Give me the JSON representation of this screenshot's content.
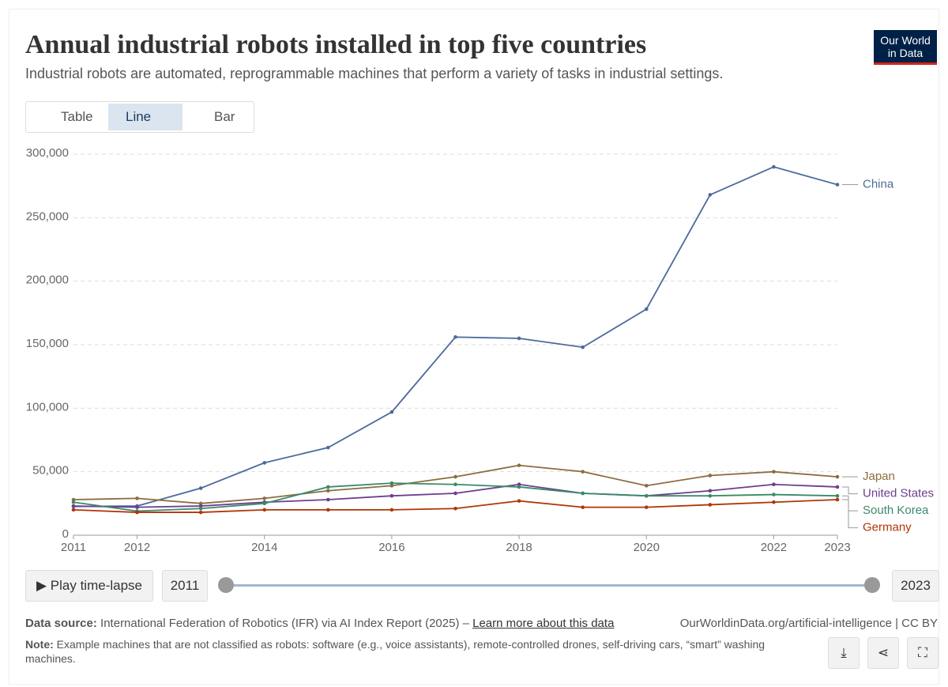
{
  "chart_data": {
    "type": "line",
    "title": "Annual industrial robots installed in top five countries",
    "subtitle": "Industrial robots are automated, reprogrammable machines that perform a variety of tasks in industrial settings.",
    "x": [
      2011,
      2012,
      2013,
      2014,
      2015,
      2016,
      2017,
      2018,
      2019,
      2020,
      2021,
      2022,
      2023
    ],
    "xlim": [
      2011,
      2023
    ],
    "xticks": [
      2011,
      2012,
      2014,
      2016,
      2018,
      2020,
      2022,
      2023
    ],
    "ylim": [
      0,
      300000
    ],
    "yticks": [
      0,
      {
        "value": 50000,
        "label": "50,000"
      },
      {
        "value": 100000,
        "label": "100,000"
      },
      {
        "value": 150000,
        "label": "150,000"
      },
      {
        "value": 200000,
        "label": "200,000"
      },
      {
        "value": 250000,
        "label": "250,000"
      },
      {
        "value": 300000,
        "label": "300,000"
      }
    ],
    "grid": true,
    "series": [
      {
        "name": "China",
        "color": "#4c6a9c",
        "values": [
          22600,
          23000,
          37000,
          57000,
          69000,
          97000,
          156000,
          155000,
          148000,
          178000,
          268000,
          290000,
          276000
        ]
      },
      {
        "name": "Japan",
        "color": "#8c6d3f",
        "values": [
          28000,
          29000,
          25000,
          29000,
          35000,
          39000,
          46000,
          55000,
          50000,
          39000,
          47000,
          50000,
          46000
        ]
      },
      {
        "name": "United States",
        "color": "#6d3e91",
        "values": [
          23000,
          22000,
          23000,
          26000,
          28000,
          31000,
          33000,
          40000,
          33000,
          31000,
          35000,
          40000,
          38000
        ]
      },
      {
        "name": "South Korea",
        "color": "#3a8a6a",
        "values": [
          26000,
          19000,
          21000,
          25000,
          38000,
          41000,
          40000,
          38000,
          33000,
          31000,
          31000,
          32000,
          31000
        ]
      },
      {
        "name": "Germany",
        "color": "#b13507",
        "values": [
          20000,
          18000,
          18000,
          20000,
          20000,
          20000,
          21000,
          27000,
          22000,
          22000,
          24000,
          26000,
          28000
        ]
      }
    ]
  },
  "logo": {
    "line1": "Our World",
    "line2": "in Data"
  },
  "tabs": [
    "Table",
    "Line",
    "Bar"
  ],
  "controls": {
    "play": "Play time-lapse",
    "start": "2011",
    "end": "2023"
  },
  "footer": {
    "source_label": "Data source:",
    "source": "International Federation of Robotics (IFR) via AI Index Report (2025) – ",
    "link": "Learn more about this data",
    "url": "OurWorldinData.org/artificial-intelligence | CC BY",
    "note_label": "Note:",
    "note": "Example machines that are not classified as robots: software (e.g., voice assistants), remote-controlled drones, self-driving cars, “smart” washing machines."
  }
}
